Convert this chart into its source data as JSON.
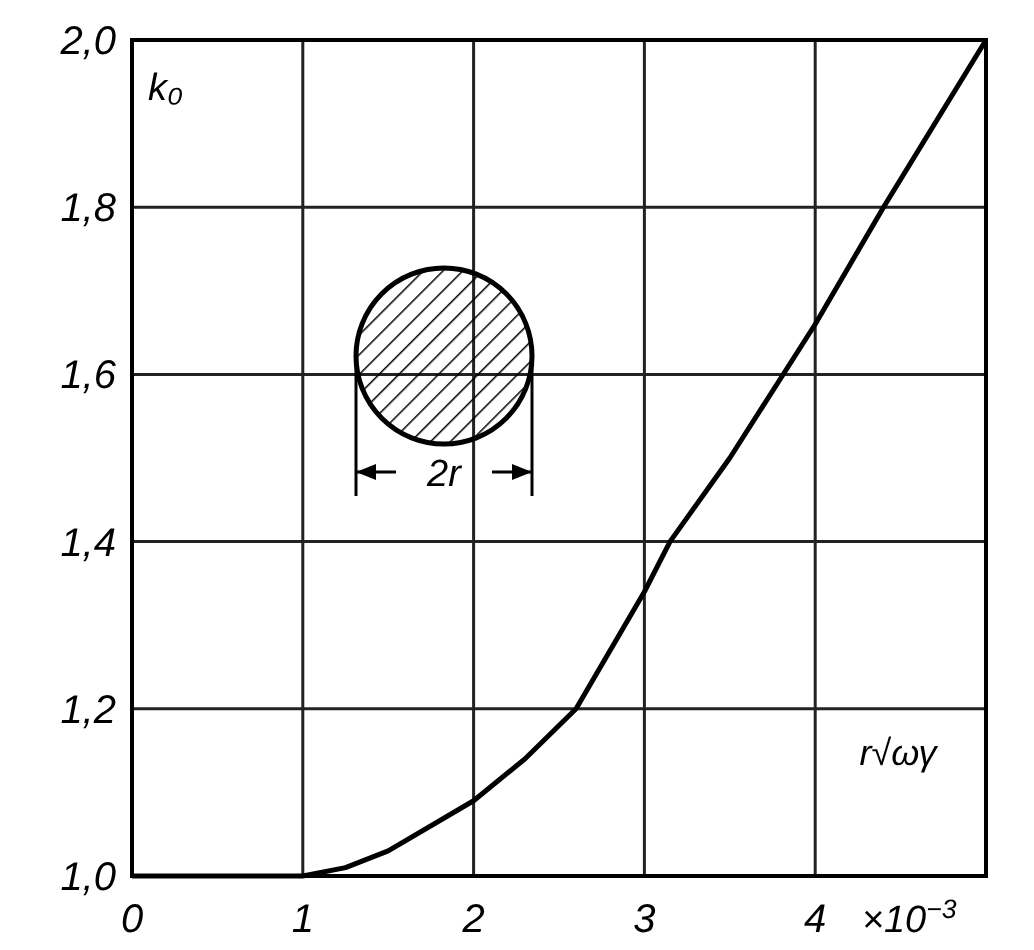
{
  "chart_data": {
    "type": "line",
    "ylabel": "k₀",
    "xlabel": "r√ωγ",
    "x": [
      0,
      1,
      1.25,
      1.5,
      2,
      2.3,
      2.6,
      3,
      3.15,
      3.5,
      4,
      4.4,
      5
    ],
    "series": [
      {
        "color": "#000000",
        "values": [
          1.0,
          1.0,
          1.01,
          1.03,
          1.09,
          1.14,
          1.2,
          1.34,
          1.4,
          1.5,
          1.66,
          1.8,
          2.0
        ]
      }
    ],
    "xlim": [
      0,
      5
    ],
    "xticks": [
      0,
      1,
      2,
      3,
      4,
      {
        "value": 5,
        "label": null
      }
    ],
    "ylim": [
      1.0,
      2.0
    ],
    "yticks": [
      {
        "value": 1.0,
        "label": "1,0"
      },
      {
        "value": 1.2,
        "label": "1,2"
      },
      {
        "value": 1.4,
        "label": "1,4"
      },
      {
        "value": 1.6,
        "label": "1,6"
      },
      {
        "value": 1.8,
        "label": "1,8"
      },
      {
        "value": 2.0,
        "label": "2,0"
      }
    ],
    "grid": true,
    "marker": "none",
    "line_style": "solid",
    "annotations": [
      "×10$^{−3}$",
      "2r"
    ]
  }
}
